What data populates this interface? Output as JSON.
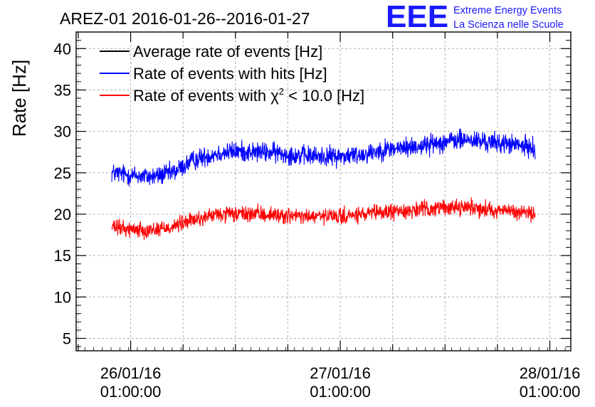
{
  "chart_data": {
    "type": "line",
    "title": "AREZ-01 2016-01-26--2016-01-27",
    "ylabel": "Rate [Hz]",
    "xlabel": "",
    "ylim": [
      3.5,
      42
    ],
    "yticks": [
      5,
      10,
      15,
      20,
      25,
      30,
      35,
      40
    ],
    "x_days": [
      0,
      1,
      2
    ],
    "xlim_days": [
      -0.26,
      2.1
    ],
    "x_tick_labels": [
      {
        "date": "26/01/16",
        "time": "01:00:00"
      },
      {
        "date": "27/01/16",
        "time": "01:00:00"
      },
      {
        "date": "28/01/16",
        "time": "01:00:00"
      }
    ],
    "grid": true,
    "legend": {
      "placement": "top-left",
      "entries": [
        {
          "label": "Average rate of events [Hz]",
          "color": "#000000"
        },
        {
          "label": "Rate of events with hits [Hz]",
          "color": "#0000ff"
        },
        {
          "label_main": "Rate of events with ",
          "label_symbol": "χ",
          "label_sup": "2",
          "label_tail": " < 10.0 [Hz]",
          "color": "#ff0000"
        }
      ]
    },
    "series": [
      {
        "name": "Rate of events with hits [Hz]",
        "color": "#0000ff",
        "noise": 0.75,
        "x_days": [
          -0.09,
          0.0,
          0.1,
          0.2,
          0.3,
          0.4,
          0.5,
          0.6,
          0.7,
          0.8,
          0.9,
          1.0,
          1.1,
          1.2,
          1.3,
          1.4,
          1.5,
          1.6,
          1.7,
          1.8,
          1.9,
          1.93
        ],
        "values": [
          25.0,
          24.7,
          24.5,
          25.0,
          26.5,
          27.3,
          27.6,
          27.5,
          27.4,
          27.1,
          27.0,
          27.0,
          27.2,
          27.8,
          28.0,
          28.3,
          28.8,
          29.0,
          28.7,
          28.5,
          28.1,
          28.0
        ]
      },
      {
        "name": "Rate of events with χ2 < 10.0 [Hz]",
        "color": "#ff0000",
        "noise": 0.6,
        "x_days": [
          -0.09,
          0.0,
          0.1,
          0.2,
          0.3,
          0.4,
          0.5,
          0.6,
          0.7,
          0.8,
          0.9,
          1.0,
          1.1,
          1.2,
          1.3,
          1.4,
          1.5,
          1.6,
          1.7,
          1.8,
          1.9,
          1.93
        ],
        "values": [
          18.4,
          18.2,
          18.1,
          18.5,
          19.3,
          19.9,
          20.0,
          20.0,
          19.9,
          19.7,
          19.7,
          19.7,
          19.9,
          20.2,
          20.4,
          20.6,
          20.8,
          20.9,
          20.6,
          20.4,
          20.1,
          20.0
        ]
      }
    ]
  },
  "logo": {
    "mark": "EEE",
    "line1": "Extreme Energy Events",
    "line2": "La Scienza nelle Scuole",
    "color": "#1a1aff"
  },
  "colors": {
    "frame": "#000000",
    "grid": "#b0b0b0"
  }
}
